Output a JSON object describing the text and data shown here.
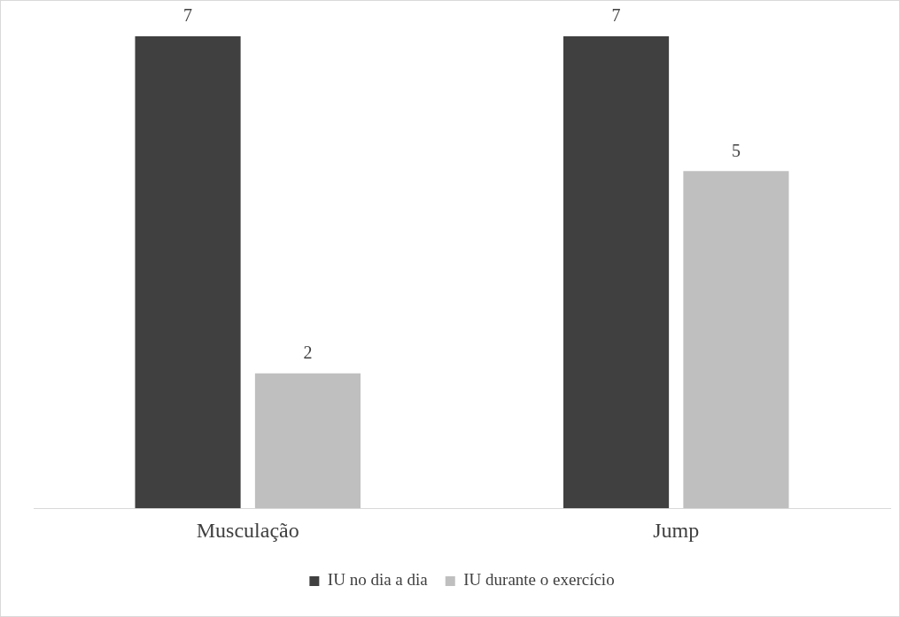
{
  "chart_data": {
    "type": "bar",
    "categories": [
      "Musculação",
      "Jump"
    ],
    "series": [
      {
        "name": "IU no dia a dia",
        "color": "#404040",
        "values": [
          7,
          7
        ]
      },
      {
        "name": "IU durante o exercício",
        "color": "#bfbfbf",
        "values": [
          2,
          5
        ]
      }
    ],
    "data_labels": true,
    "legend": "bottom",
    "grid": false
  }
}
